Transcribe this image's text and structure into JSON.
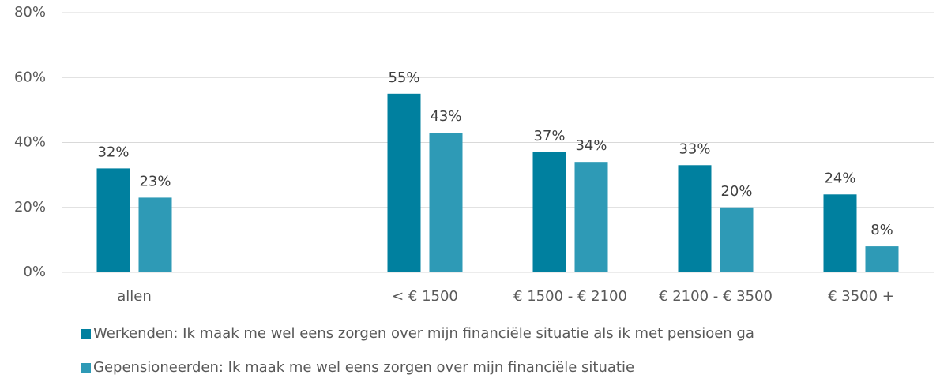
{
  "chart_data": {
    "type": "bar",
    "categories": [
      "allen",
      null,
      "< € 1500",
      "€ 1500 - € 2100",
      "€ 2100 - € 3500",
      "€ 3500 +"
    ],
    "series": [
      {
        "name": "Werkenden: Ik maak me wel eens zorgen over mijn financiële situatie als ik met pensioen ga",
        "color": "#00809f",
        "values": [
          32,
          null,
          55,
          37,
          33,
          24
        ],
        "value_labels": [
          "32%",
          null,
          "55%",
          "37%",
          "33%",
          "24%"
        ]
      },
      {
        "name": "Gepensioneerden: Ik maak me wel eens zorgen over mijn financiële situatie",
        "color": "#2e9ab6",
        "values": [
          23,
          null,
          43,
          34,
          20,
          8
        ],
        "value_labels": [
          "23%",
          null,
          "43%",
          "34%",
          "20%",
          "8%"
        ]
      }
    ],
    "ylim": [
      0,
      80
    ],
    "yticks": [
      {
        "value": 0,
        "label": "0%"
      },
      {
        "value": 20,
        "label": "20%"
      },
      {
        "value": 40,
        "label": "40%"
      },
      {
        "value": 60,
        "label": "60%"
      },
      {
        "value": 80,
        "label": "80%"
      }
    ],
    "grid": true
  }
}
